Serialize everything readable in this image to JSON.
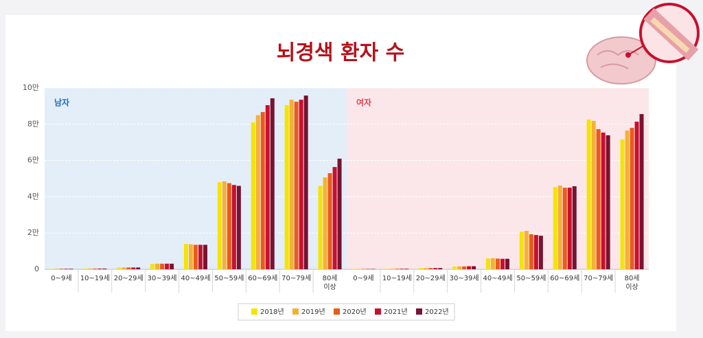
{
  "chart_data": {
    "type": "bar",
    "title": "뇌경색 환자 수",
    "title_color": "#b5121b",
    "categories": [
      "0~9세",
      "10~19세",
      "20~29세",
      "30~39세",
      "40~49세",
      "50~59세",
      "60~69세",
      "70~79세",
      "80세\n이상"
    ],
    "series": [
      {
        "name": "2018년",
        "color": "#f5e400"
      },
      {
        "name": "2019년",
        "color": "#f6b035"
      },
      {
        "name": "2020년",
        "color": "#ea5a1c"
      },
      {
        "name": "2021년",
        "color": "#c8102e"
      },
      {
        "name": "2022년",
        "color": "#7a1232"
      }
    ],
    "panels": [
      {
        "label": "남자",
        "label_color": "#1f6fb5",
        "background": "#e4eef8",
        "values": [
          [
            300,
            400,
            1000,
            3000,
            14000,
            48000,
            81000,
            90500,
            46000
          ],
          [
            300,
            400,
            1000,
            3100,
            13800,
            48500,
            85000,
            93500,
            50700
          ],
          [
            300,
            400,
            1000,
            3100,
            13500,
            47500,
            86700,
            92400,
            53000
          ],
          [
            300,
            400,
            1000,
            3100,
            13500,
            46500,
            90500,
            93500,
            56400
          ],
          [
            300,
            400,
            1000,
            3100,
            13500,
            46000,
            94300,
            95800,
            61000
          ]
        ]
      },
      {
        "label": "여자",
        "label_color": "#e0455a",
        "background": "#fbe7ea",
        "values": [
          [
            200,
            300,
            700,
            1500,
            6000,
            20800,
            45400,
            82600,
            71600
          ],
          [
            200,
            300,
            700,
            1600,
            6100,
            21200,
            46200,
            81800,
            76500
          ],
          [
            200,
            300,
            700,
            1600,
            5900,
            19300,
            45000,
            77300,
            78000
          ],
          [
            200,
            300,
            700,
            1700,
            5800,
            18900,
            45000,
            75400,
            81400
          ],
          [
            200,
            300,
            700,
            1700,
            5800,
            18500,
            45800,
            73900,
            85600
          ]
        ]
      }
    ],
    "ylim": [
      0,
      100000
    ],
    "yticks": [
      0,
      {
        "value": 20000,
        "label": "2만"
      },
      {
        "value": 40000,
        "label": "4만"
      },
      {
        "value": 60000,
        "label": "6만"
      },
      {
        "value": 80000,
        "label": "8만"
      },
      {
        "value": 100000,
        "label": "10만"
      }
    ],
    "grid": true
  }
}
